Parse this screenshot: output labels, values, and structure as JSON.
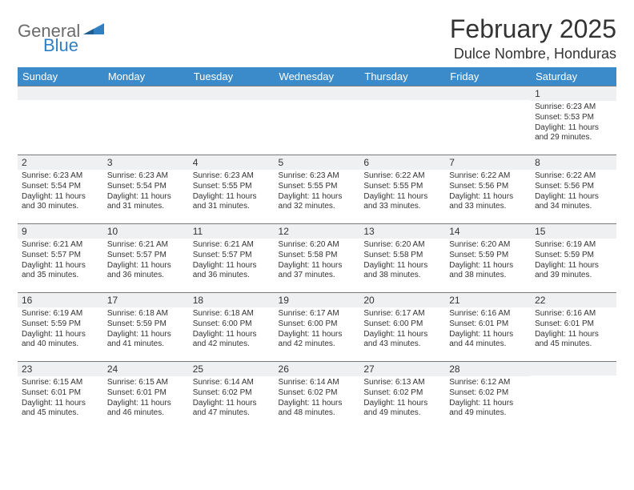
{
  "brand": {
    "part1": "General",
    "part2": "Blue"
  },
  "title": "February 2025",
  "location": "Dulce Nombre, Honduras",
  "colors": {
    "header_bg": "#3b8bca",
    "header_fg": "#ffffff",
    "daynum_bg": "#eef0f1",
    "daynum_border": "#7a7a7a",
    "text": "#333333",
    "logo_gray": "#6b6b6b",
    "logo_blue": "#2f7fc2"
  },
  "weekdays": [
    "Sunday",
    "Monday",
    "Tuesday",
    "Wednesday",
    "Thursday",
    "Friday",
    "Saturday"
  ],
  "weeks": [
    [
      {
        "n": "",
        "lines": []
      },
      {
        "n": "",
        "lines": []
      },
      {
        "n": "",
        "lines": []
      },
      {
        "n": "",
        "lines": []
      },
      {
        "n": "",
        "lines": []
      },
      {
        "n": "",
        "lines": []
      },
      {
        "n": "1",
        "lines": [
          "Sunrise: 6:23 AM",
          "Sunset: 5:53 PM",
          "Daylight: 11 hours and 29 minutes."
        ]
      }
    ],
    [
      {
        "n": "2",
        "lines": [
          "Sunrise: 6:23 AM",
          "Sunset: 5:54 PM",
          "Daylight: 11 hours and 30 minutes."
        ]
      },
      {
        "n": "3",
        "lines": [
          "Sunrise: 6:23 AM",
          "Sunset: 5:54 PM",
          "Daylight: 11 hours and 31 minutes."
        ]
      },
      {
        "n": "4",
        "lines": [
          "Sunrise: 6:23 AM",
          "Sunset: 5:55 PM",
          "Daylight: 11 hours and 31 minutes."
        ]
      },
      {
        "n": "5",
        "lines": [
          "Sunrise: 6:23 AM",
          "Sunset: 5:55 PM",
          "Daylight: 11 hours and 32 minutes."
        ]
      },
      {
        "n": "6",
        "lines": [
          "Sunrise: 6:22 AM",
          "Sunset: 5:55 PM",
          "Daylight: 11 hours and 33 minutes."
        ]
      },
      {
        "n": "7",
        "lines": [
          "Sunrise: 6:22 AM",
          "Sunset: 5:56 PM",
          "Daylight: 11 hours and 33 minutes."
        ]
      },
      {
        "n": "8",
        "lines": [
          "Sunrise: 6:22 AM",
          "Sunset: 5:56 PM",
          "Daylight: 11 hours and 34 minutes."
        ]
      }
    ],
    [
      {
        "n": "9",
        "lines": [
          "Sunrise: 6:21 AM",
          "Sunset: 5:57 PM",
          "Daylight: 11 hours and 35 minutes."
        ]
      },
      {
        "n": "10",
        "lines": [
          "Sunrise: 6:21 AM",
          "Sunset: 5:57 PM",
          "Daylight: 11 hours and 36 minutes."
        ]
      },
      {
        "n": "11",
        "lines": [
          "Sunrise: 6:21 AM",
          "Sunset: 5:57 PM",
          "Daylight: 11 hours and 36 minutes."
        ]
      },
      {
        "n": "12",
        "lines": [
          "Sunrise: 6:20 AM",
          "Sunset: 5:58 PM",
          "Daylight: 11 hours and 37 minutes."
        ]
      },
      {
        "n": "13",
        "lines": [
          "Sunrise: 6:20 AM",
          "Sunset: 5:58 PM",
          "Daylight: 11 hours and 38 minutes."
        ]
      },
      {
        "n": "14",
        "lines": [
          "Sunrise: 6:20 AM",
          "Sunset: 5:59 PM",
          "Daylight: 11 hours and 38 minutes."
        ]
      },
      {
        "n": "15",
        "lines": [
          "Sunrise: 6:19 AM",
          "Sunset: 5:59 PM",
          "Daylight: 11 hours and 39 minutes."
        ]
      }
    ],
    [
      {
        "n": "16",
        "lines": [
          "Sunrise: 6:19 AM",
          "Sunset: 5:59 PM",
          "Daylight: 11 hours and 40 minutes."
        ]
      },
      {
        "n": "17",
        "lines": [
          "Sunrise: 6:18 AM",
          "Sunset: 5:59 PM",
          "Daylight: 11 hours and 41 minutes."
        ]
      },
      {
        "n": "18",
        "lines": [
          "Sunrise: 6:18 AM",
          "Sunset: 6:00 PM",
          "Daylight: 11 hours and 42 minutes."
        ]
      },
      {
        "n": "19",
        "lines": [
          "Sunrise: 6:17 AM",
          "Sunset: 6:00 PM",
          "Daylight: 11 hours and 42 minutes."
        ]
      },
      {
        "n": "20",
        "lines": [
          "Sunrise: 6:17 AM",
          "Sunset: 6:00 PM",
          "Daylight: 11 hours and 43 minutes."
        ]
      },
      {
        "n": "21",
        "lines": [
          "Sunrise: 6:16 AM",
          "Sunset: 6:01 PM",
          "Daylight: 11 hours and 44 minutes."
        ]
      },
      {
        "n": "22",
        "lines": [
          "Sunrise: 6:16 AM",
          "Sunset: 6:01 PM",
          "Daylight: 11 hours and 45 minutes."
        ]
      }
    ],
    [
      {
        "n": "23",
        "lines": [
          "Sunrise: 6:15 AM",
          "Sunset: 6:01 PM",
          "Daylight: 11 hours and 45 minutes."
        ]
      },
      {
        "n": "24",
        "lines": [
          "Sunrise: 6:15 AM",
          "Sunset: 6:01 PM",
          "Daylight: 11 hours and 46 minutes."
        ]
      },
      {
        "n": "25",
        "lines": [
          "Sunrise: 6:14 AM",
          "Sunset: 6:02 PM",
          "Daylight: 11 hours and 47 minutes."
        ]
      },
      {
        "n": "26",
        "lines": [
          "Sunrise: 6:14 AM",
          "Sunset: 6:02 PM",
          "Daylight: 11 hours and 48 minutes."
        ]
      },
      {
        "n": "27",
        "lines": [
          "Sunrise: 6:13 AM",
          "Sunset: 6:02 PM",
          "Daylight: 11 hours and 49 minutes."
        ]
      },
      {
        "n": "28",
        "lines": [
          "Sunrise: 6:12 AM",
          "Sunset: 6:02 PM",
          "Daylight: 11 hours and 49 minutes."
        ]
      },
      {
        "n": "",
        "lines": []
      }
    ]
  ]
}
